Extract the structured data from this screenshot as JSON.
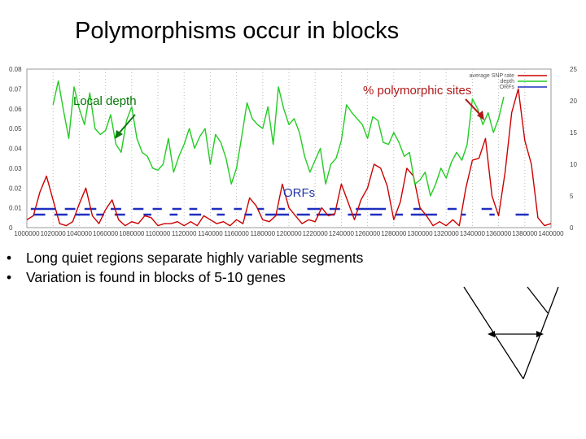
{
  "slide": {
    "title": "Polymorphisms occur in blocks",
    "bullets": [
      "Long quiet regions separate highly variable segments",
      "Variation is found in blocks of 5-10 genes"
    ],
    "bullet_glyph": "•"
  },
  "chart_data": {
    "type": "line",
    "title": "",
    "xlabel": "",
    "ylabel": "",
    "xlim": [
      1000000,
      1400000
    ],
    "ylim": [
      0,
      0.08
    ],
    "y2lim": [
      0,
      25
    ],
    "x_ticks": [
      "1000000",
      "1020000",
      "1040000",
      "1060000",
      "1080000",
      "1100000",
      "1120000",
      "1140000",
      "1160000",
      "1180000",
      "1200000",
      "1220000",
      "1240000",
      "1260000",
      "1280000",
      "1300000",
      "1320000",
      "1340000",
      "1360000",
      "1380000",
      "1400000"
    ],
    "y_ticks": [
      "0",
      "0.01",
      "0.02",
      "0.03",
      "0.04",
      "0.05",
      "0.06",
      "0.07",
      "0.08"
    ],
    "y2_ticks": [
      "0",
      "5",
      "10",
      "15",
      "20",
      "25"
    ],
    "grid": "vertical dotted",
    "legend_position": "top-right",
    "legend": [
      "average SNP rate",
      "depth",
      "ORFs"
    ],
    "annotations": {
      "local_depth": "Local depth",
      "polymorphic": "% polymorphic sites",
      "orfs": "ORFs"
    },
    "series": [
      {
        "name": "average SNP rate",
        "color": "#cc0000",
        "x": [
          1000000,
          1005000,
          1010000,
          1015000,
          1020000,
          1025000,
          1030000,
          1035000,
          1040000,
          1045000,
          1050000,
          1055000,
          1060000,
          1065000,
          1070000,
          1075000,
          1080000,
          1085000,
          1090000,
          1095000,
          1100000,
          1105000,
          1110000,
          1115000,
          1120000,
          1125000,
          1130000,
          1135000,
          1140000,
          1145000,
          1150000,
          1155000,
          1160000,
          1165000,
          1170000,
          1175000,
          1180000,
          1185000,
          1190000,
          1195000,
          1200000,
          1205000,
          1210000,
          1215000,
          1220000,
          1225000,
          1230000,
          1235000,
          1240000,
          1245000,
          1250000,
          1255000,
          1260000,
          1265000,
          1270000,
          1275000,
          1280000,
          1285000,
          1290000,
          1295000,
          1300000,
          1305000,
          1310000,
          1315000,
          1320000,
          1325000,
          1330000,
          1335000,
          1340000,
          1345000,
          1350000,
          1355000,
          1360000,
          1365000,
          1370000,
          1375000,
          1380000,
          1385000,
          1390000,
          1395000,
          1400000
        ],
        "values": [
          0.004,
          0.006,
          0.018,
          0.026,
          0.014,
          0.002,
          0.001,
          0.003,
          0.012,
          0.02,
          0.006,
          0.002,
          0.009,
          0.014,
          0.004,
          0.001,
          0.003,
          0.002,
          0.006,
          0.005,
          0.001,
          0.002,
          0.002,
          0.003,
          0.001,
          0.003,
          0.001,
          0.006,
          0.004,
          0.002,
          0.003,
          0.001,
          0.004,
          0.002,
          0.015,
          0.011,
          0.004,
          0.003,
          0.006,
          0.022,
          0.01,
          0.006,
          0.002,
          0.004,
          0.003,
          0.01,
          0.006,
          0.007,
          0.022,
          0.013,
          0.004,
          0.014,
          0.02,
          0.032,
          0.03,
          0.021,
          0.004,
          0.013,
          0.03,
          0.026,
          0.01,
          0.006,
          0.001,
          0.003,
          0.001,
          0.004,
          0.001,
          0.02,
          0.034,
          0.035,
          0.045,
          0.016,
          0.006,
          0.028,
          0.058,
          0.07,
          0.044,
          0.032,
          0.005,
          0.001,
          0.002
        ]
      },
      {
        "name": "depth",
        "color": "#22cc22",
        "x": [
          1020000,
          1024000,
          1028000,
          1032000,
          1036000,
          1040000,
          1044000,
          1048000,
          1052000,
          1056000,
          1060000,
          1064000,
          1068000,
          1072000,
          1076000,
          1080000,
          1084000,
          1088000,
          1092000,
          1096000,
          1100000,
          1104000,
          1108000,
          1112000,
          1116000,
          1120000,
          1124000,
          1128000,
          1132000,
          1136000,
          1140000,
          1144000,
          1148000,
          1152000,
          1156000,
          1160000,
          1164000,
          1168000,
          1172000,
          1176000,
          1180000,
          1184000,
          1188000,
          1192000,
          1196000,
          1200000,
          1204000,
          1208000,
          1212000,
          1216000,
          1220000,
          1224000,
          1228000,
          1232000,
          1236000,
          1240000,
          1244000,
          1248000,
          1252000,
          1256000,
          1260000,
          1264000,
          1268000,
          1272000,
          1276000,
          1280000,
          1284000,
          1288000,
          1292000,
          1296000,
          1300000,
          1304000,
          1308000,
          1312000,
          1316000,
          1320000,
          1324000,
          1328000,
          1332000,
          1336000,
          1340000,
          1344000,
          1348000,
          1352000,
          1356000,
          1360000,
          1364000
        ],
        "values": [
          0.062,
          0.074,
          0.059,
          0.045,
          0.071,
          0.06,
          0.052,
          0.068,
          0.05,
          0.047,
          0.049,
          0.057,
          0.042,
          0.038,
          0.054,
          0.061,
          0.045,
          0.038,
          0.036,
          0.03,
          0.029,
          0.032,
          0.045,
          0.028,
          0.036,
          0.042,
          0.05,
          0.04,
          0.046,
          0.05,
          0.032,
          0.047,
          0.043,
          0.035,
          0.022,
          0.03,
          0.046,
          0.063,
          0.055,
          0.052,
          0.05,
          0.061,
          0.042,
          0.071,
          0.06,
          0.052,
          0.055,
          0.048,
          0.036,
          0.028,
          0.034,
          0.04,
          0.022,
          0.032,
          0.035,
          0.044,
          0.062,
          0.058,
          0.055,
          0.052,
          0.045,
          0.056,
          0.054,
          0.043,
          0.042,
          0.048,
          0.043,
          0.036,
          0.038,
          0.022,
          0.024,
          0.028,
          0.016,
          0.022,
          0.03,
          0.025,
          0.033,
          0.038,
          0.034,
          0.042,
          0.065,
          0.06,
          0.052,
          0.058,
          0.048,
          0.055,
          0.066
        ]
      }
    ],
    "orfs_top": [
      [
        1003000,
        1022000
      ],
      [
        1029000,
        1037000
      ],
      [
        1044000,
        1053000
      ],
      [
        1064000,
        1072000
      ],
      [
        1081000,
        1089000
      ],
      [
        1096000,
        1103000
      ],
      [
        1111000,
        1118000
      ],
      [
        1124000,
        1130000
      ],
      [
        1141000,
        1149000
      ],
      [
        1158000,
        1164000
      ],
      [
        1176000,
        1181000
      ],
      [
        1192000,
        1197000
      ],
      [
        1214000,
        1224000
      ],
      [
        1231000,
        1239000
      ],
      [
        1251000,
        1274000
      ],
      [
        1295000,
        1301000
      ],
      [
        1321000,
        1328000
      ],
      [
        1347000,
        1355000
      ]
    ],
    "orfs_bottom": [
      [
        1005000,
        1014000
      ],
      [
        1021000,
        1031000
      ],
      [
        1037000,
        1048000
      ],
      [
        1053000,
        1059000
      ],
      [
        1067000,
        1075000
      ],
      [
        1089000,
        1095000
      ],
      [
        1109000,
        1115000
      ],
      [
        1124000,
        1133000
      ],
      [
        1145000,
        1151000
      ],
      [
        1166000,
        1172000
      ],
      [
        1182000,
        1200000
      ],
      [
        1206000,
        1216000
      ],
      [
        1221000,
        1235000
      ],
      [
        1245000,
        1255000
      ],
      [
        1262000,
        1271000
      ],
      [
        1281000,
        1287000
      ],
      [
        1293000,
        1313000
      ],
      [
        1331000,
        1335000
      ],
      [
        1353000,
        1357000
      ],
      [
        1373000,
        1383000
      ]
    ]
  }
}
